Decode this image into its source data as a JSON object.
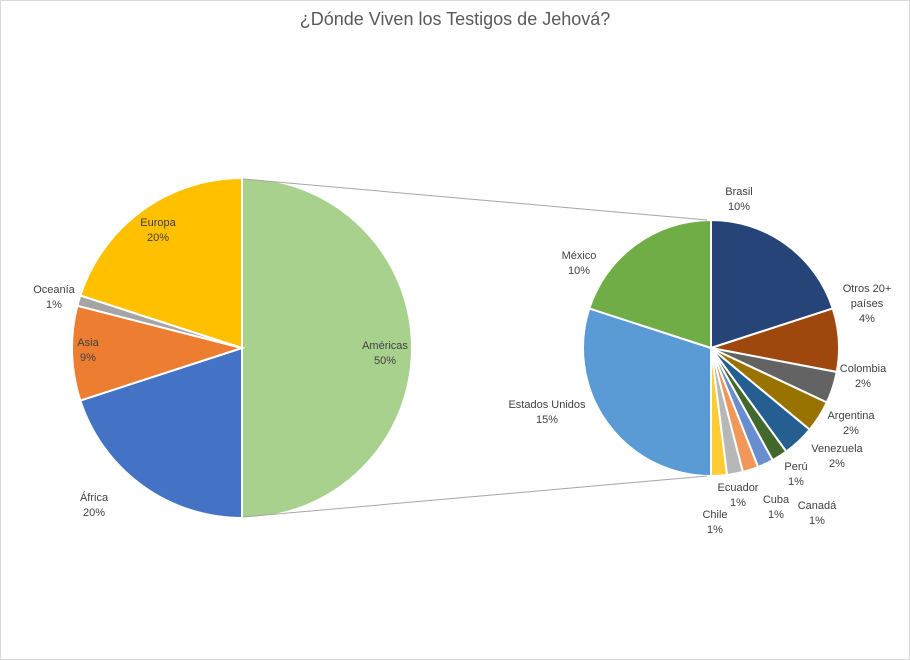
{
  "chart_data": {
    "type": "pie",
    "subtype": "pie-of-pie",
    "title": "¿Dónde Viven los Testigos de Jehová?",
    "legend": "none",
    "main_pie": {
      "slices": [
        {
          "label": "Américas",
          "value": 50,
          "value_label": "50%",
          "color": "#A9D18E"
        },
        {
          "label": "África",
          "value": 20,
          "value_label": "20%",
          "color": "#4472C4"
        },
        {
          "label": "Asia",
          "value": 9,
          "value_label": "9%",
          "color": "#ED7D31"
        },
        {
          "label": "Oceanía",
          "value": 1,
          "value_label": "1%",
          "color": "#A5A5A5"
        },
        {
          "label": "Europa",
          "value": 20,
          "value_label": "20%",
          "color": "#FFC000"
        }
      ]
    },
    "secondary_pie": {
      "expands": "Américas",
      "slices": [
        {
          "label": "Brasil",
          "value": 10,
          "value_label": "10%",
          "color": "#264478"
        },
        {
          "label": "Otros 20+ países",
          "value": 4,
          "value_label": "4%",
          "color": "#9E480E"
        },
        {
          "label": "Colombia",
          "value": 2,
          "value_label": "2%",
          "color": "#636363"
        },
        {
          "label": "Argentina",
          "value": 2,
          "value_label": "2%",
          "color": "#997300"
        },
        {
          "label": "Venezuela",
          "value": 2,
          "value_label": "2%",
          "color": "#255E91"
        },
        {
          "label": "Cuba",
          "value": 1,
          "value_label": "1%",
          "color": "#43682B"
        },
        {
          "label": "Perú",
          "value": 1,
          "value_label": "1%",
          "color": "#698ED0"
        },
        {
          "label": "Canadá",
          "value": 1,
          "value_label": "1%",
          "color": "#F1975A"
        },
        {
          "label": "Ecuador",
          "value": 1,
          "value_label": "1%",
          "color": "#B7B7B7"
        },
        {
          "label": "Chile",
          "value": 1,
          "value_label": "1%",
          "color": "#FFCD33"
        },
        {
          "label": "Estados Unidos",
          "value": 15,
          "value_label": "15%",
          "color": "#5B9BD5"
        },
        {
          "label": "México",
          "value": 10,
          "value_label": "10%",
          "color": "#70AD47"
        }
      ]
    }
  }
}
